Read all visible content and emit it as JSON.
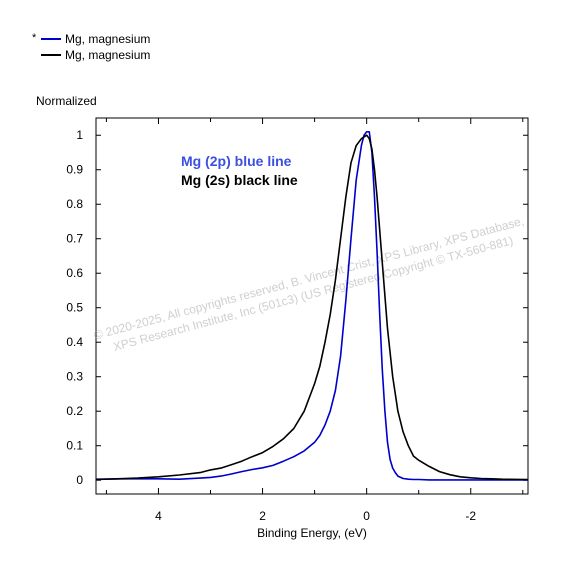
{
  "chart_data": {
    "type": "line",
    "title": "",
    "ylabel": "Normalized",
    "xlabel": "Binding Energy, (eV)",
    "xlim": [
      5.2,
      -3.1
    ],
    "ylim": [
      -0.04,
      1.05
    ],
    "x_reversed": true,
    "grid": false,
    "legend_position": "top-left",
    "x_ticks": [
      {
        "value": 4,
        "label": "4"
      },
      {
        "value": 2,
        "label": "2"
      },
      {
        "value": 0,
        "label": "0"
      },
      {
        "value": -2,
        "label": "-2"
      }
    ],
    "y_ticks": [
      {
        "value": 0,
        "label": "0"
      },
      {
        "value": 0.1,
        "label": "0.1"
      },
      {
        "value": 0.2,
        "label": "0.2"
      },
      {
        "value": 0.3,
        "label": "0.3"
      },
      {
        "value": 0.4,
        "label": "0.4"
      },
      {
        "value": 0.5,
        "label": "0.5"
      },
      {
        "value": 0.6,
        "label": "0.6"
      },
      {
        "value": 0.7,
        "label": "0.7"
      },
      {
        "value": 0.8,
        "label": "0.8"
      },
      {
        "value": 0.9,
        "label": "0.9"
      },
      {
        "value": 1,
        "label": "1"
      }
    ],
    "legend": [
      {
        "marker": "*",
        "name": "Mg, magnesium",
        "color": "#0000cc"
      },
      {
        "marker": "",
        "name": "Mg, magnesium",
        "color": "#000000"
      }
    ],
    "annotations": [
      {
        "text": "Mg (2p) blue line",
        "color": "#3b4fe0"
      },
      {
        "text": "Mg (2s) black line",
        "color": "#000000"
      }
    ],
    "watermark": [
      "© 2020-2025, All copyrights reserved, B. Vincent Crist, XPS Library, XPS Database,",
      "XPS Research Institute, Inc (501c3) (US Registered Copyright © TX-560-881)"
    ],
    "series": [
      {
        "name": "Mg (2p)",
        "color": "#0000cc",
        "x": [
          5.2,
          4.6,
          4.0,
          3.6,
          3.2,
          3.0,
          2.8,
          2.6,
          2.4,
          2.2,
          2.0,
          1.8,
          1.6,
          1.4,
          1.2,
          1.0,
          0.9,
          0.8,
          0.7,
          0.6,
          0.5,
          0.4,
          0.3,
          0.2,
          0.1,
          0.05,
          0.0,
          -0.05,
          -0.1,
          -0.15,
          -0.2,
          -0.25,
          -0.3,
          -0.35,
          -0.4,
          -0.45,
          -0.5,
          -0.55,
          -0.6,
          -0.7,
          -0.8,
          -0.9,
          -1.0,
          -1.2,
          -1.5,
          -2.0,
          -2.5,
          -3.1
        ],
        "y": [
          0.003,
          0.004,
          0.004,
          0.003,
          0.006,
          0.008,
          0.012,
          0.018,
          0.025,
          0.031,
          0.036,
          0.043,
          0.055,
          0.068,
          0.085,
          0.11,
          0.13,
          0.16,
          0.2,
          0.26,
          0.36,
          0.52,
          0.7,
          0.87,
          0.97,
          1.0,
          1.01,
          1.01,
          0.95,
          0.82,
          0.66,
          0.48,
          0.32,
          0.2,
          0.11,
          0.06,
          0.035,
          0.022,
          0.012,
          0.005,
          0.003,
          0.002,
          0.002,
          0.001,
          0.001,
          0.001,
          0.001,
          0.001
        ]
      },
      {
        "name": "Mg (2s)",
        "color": "#000000",
        "x": [
          5.2,
          4.8,
          4.4,
          4.0,
          3.6,
          3.2,
          3.0,
          2.8,
          2.6,
          2.4,
          2.2,
          2.0,
          1.8,
          1.6,
          1.4,
          1.2,
          1.0,
          0.9,
          0.8,
          0.7,
          0.6,
          0.5,
          0.4,
          0.3,
          0.2,
          0.1,
          0.0,
          -0.05,
          -0.1,
          -0.15,
          -0.2,
          -0.3,
          -0.4,
          -0.5,
          -0.6,
          -0.7,
          -0.8,
          -0.9,
          -1.0,
          -1.2,
          -1.4,
          -1.6,
          -1.8,
          -2.0,
          -2.2,
          -2.4,
          -2.6,
          -3.1
        ],
        "y": [
          0.002,
          0.004,
          0.006,
          0.01,
          0.015,
          0.022,
          0.03,
          0.035,
          0.045,
          0.055,
          0.068,
          0.08,
          0.098,
          0.12,
          0.15,
          0.2,
          0.28,
          0.33,
          0.4,
          0.48,
          0.58,
          0.7,
          0.82,
          0.92,
          0.97,
          0.99,
          1.0,
          0.99,
          0.96,
          0.9,
          0.82,
          0.63,
          0.44,
          0.3,
          0.2,
          0.14,
          0.1,
          0.07,
          0.058,
          0.04,
          0.025,
          0.016,
          0.01,
          0.007,
          0.005,
          0.004,
          0.003,
          0.002
        ]
      }
    ]
  }
}
